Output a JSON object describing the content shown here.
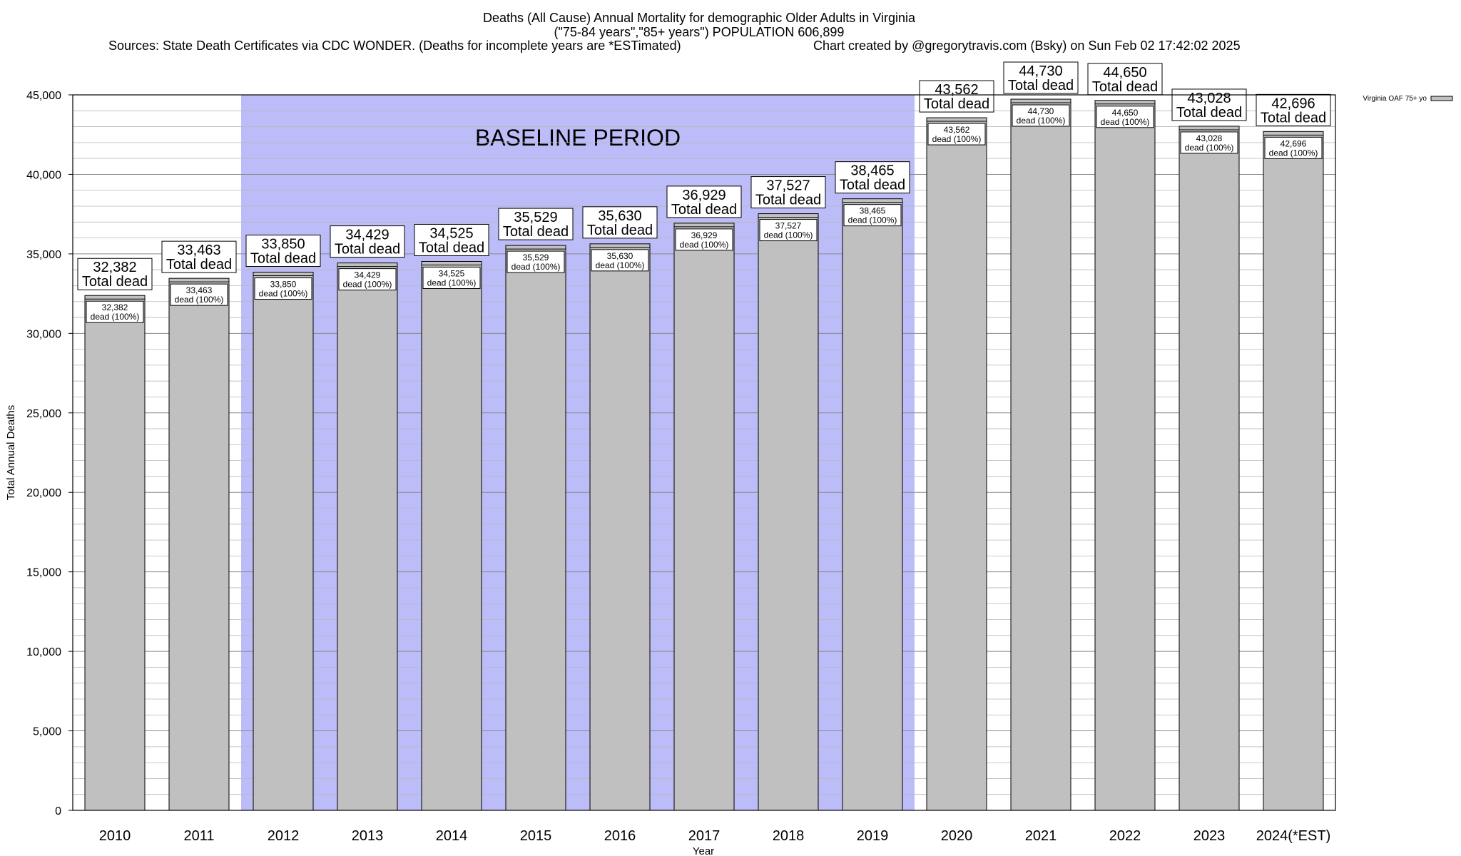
{
  "header": {
    "title_line1": "Deaths (All Cause) Annual Mortality for demographic Older Adults in Virginia",
    "title_line2": "(\"75-84 years\",\"85+ years\") POPULATION 606,899",
    "sources": "Sources: State Death Certificates via CDC WONDER. (Deaths for incomplete years are *ESTimated)",
    "credit": "Chart created by @gregorytravis.com (Bsky) on Sun Feb 02 17:42:02 2025"
  },
  "chart_data": {
    "type": "bar",
    "xlabel": "Year",
    "ylabel": "Total Annual Deaths",
    "ylim": [
      0,
      45000
    ],
    "yticks": [
      0,
      5000,
      10000,
      15000,
      20000,
      25000,
      30000,
      35000,
      40000,
      45000
    ],
    "ytick_labels": [
      "0",
      "5,000",
      "10,000",
      "15,000",
      "20,000",
      "25,000",
      "30,000",
      "35,000",
      "40,000",
      "45,000"
    ],
    "minor_grid_step": 1000,
    "grid": true,
    "categories": [
      "2010",
      "2011",
      "2012",
      "2013",
      "2014",
      "2015",
      "2016",
      "2017",
      "2018",
      "2019",
      "2020",
      "2021",
      "2022",
      "2023",
      "2024(*EST)"
    ],
    "series": [
      {
        "name": "Virginia OAF 75+ yo",
        "values": [
          32382,
          33463,
          33850,
          34429,
          34525,
          35529,
          35630,
          36929,
          37527,
          38465,
          43562,
          44730,
          44650,
          43028,
          42696
        ]
      }
    ],
    "value_labels": [
      "32,382",
      "33,463",
      "33,850",
      "34,429",
      "34,525",
      "35,529",
      "35,630",
      "36,929",
      "37,527",
      "38,465",
      "43,562",
      "44,730",
      "44,650",
      "43,028",
      "42,696"
    ],
    "total_label_suffix": "Total dead",
    "inner_label_suffix": "dead (100%)",
    "shaded_region": {
      "label": "BASELINE PERIOD",
      "from_category": "2012",
      "to_category": "2019",
      "color": "#bcbcf8"
    },
    "bar_color": "#c0c0c0",
    "legend": {
      "entries": [
        "Virginia OAF 75+ yo"
      ],
      "position": "top-right"
    }
  }
}
